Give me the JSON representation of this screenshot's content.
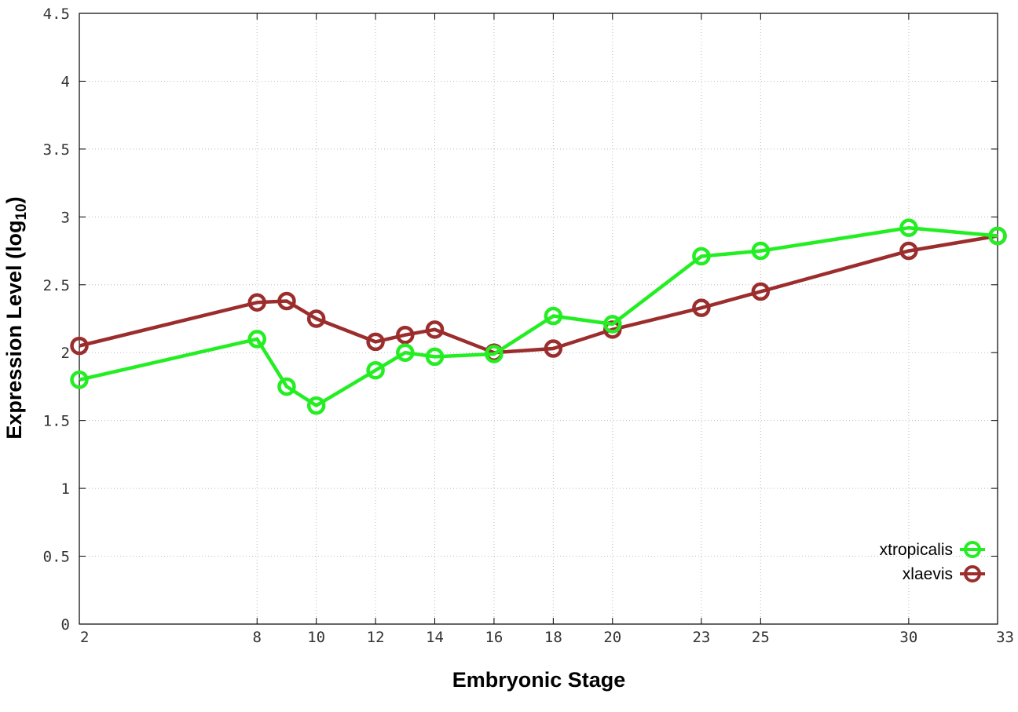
{
  "chart_data": {
    "type": "line",
    "xlabel": "Embryonic Stage",
    "ylabel_main": "Expression Level (log",
    "ylabel_sub": "10",
    "ylabel_close": ")",
    "xlim": [
      2,
      33
    ],
    "ylim": [
      0,
      4.5
    ],
    "x_ticks": [
      2,
      8,
      10,
      12,
      14,
      16,
      18,
      20,
      23,
      25,
      30,
      33
    ],
    "y_ticks": [
      0,
      0.5,
      1,
      1.5,
      2,
      2.5,
      3,
      3.5,
      4,
      4.5
    ],
    "y_tick_labels": [
      "0",
      "0.5",
      "1",
      "1.5",
      "2",
      "2.5",
      "3",
      "3.5",
      "4",
      "4.5"
    ],
    "grid": true,
    "legend_position": "bottom-right",
    "series": [
      {
        "name": "xtropicalis",
        "color": "#22ee22",
        "points": [
          [
            2,
            1.8
          ],
          [
            8,
            2.1
          ],
          [
            9,
            1.75
          ],
          [
            10,
            1.61
          ],
          [
            12,
            1.87
          ],
          [
            13,
            2.0
          ],
          [
            14,
            1.97
          ],
          [
            16,
            1.99
          ],
          [
            18,
            2.27
          ],
          [
            20,
            2.21
          ],
          [
            23,
            2.71
          ],
          [
            25,
            2.75
          ],
          [
            30,
            2.92
          ],
          [
            33,
            2.86
          ]
        ]
      },
      {
        "name": "xlaevis",
        "color": "#9b2d2d",
        "points": [
          [
            2,
            2.05
          ],
          [
            8,
            2.37
          ],
          [
            9,
            2.38
          ],
          [
            10,
            2.25
          ],
          [
            12,
            2.08
          ],
          [
            13,
            2.13
          ],
          [
            14,
            2.17
          ],
          [
            16,
            2.0
          ],
          [
            18,
            2.03
          ],
          [
            20,
            2.17
          ],
          [
            23,
            2.33
          ],
          [
            25,
            2.45
          ],
          [
            30,
            2.75
          ],
          [
            33,
            2.86
          ]
        ]
      }
    ]
  }
}
